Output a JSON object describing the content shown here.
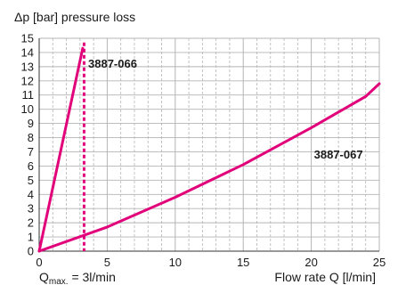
{
  "chart_data": {
    "type": "line",
    "ylabel": "Δp [bar] pressure loss",
    "xlabel": "Flow rate Q [l/min]",
    "xlim": [
      0,
      25
    ],
    "ylim": [
      0,
      15
    ],
    "x_ticks": [
      0,
      5,
      10,
      15,
      20,
      25
    ],
    "y_ticks": [
      0,
      1,
      2,
      3,
      4,
      5,
      6,
      7,
      8,
      9,
      10,
      11,
      12,
      13,
      14,
      15
    ],
    "grid": true,
    "line_color": "#e2007a",
    "series": [
      {
        "name": "3887-066",
        "x": [
          0,
          3.2
        ],
        "y": [
          0,
          14.3
        ]
      },
      {
        "name": "3887-067",
        "x": [
          0,
          5,
          10,
          15,
          20,
          24,
          25
        ],
        "y": [
          0,
          1.7,
          3.8,
          6.1,
          8.7,
          10.9,
          11.8
        ]
      }
    ],
    "annotations": {
      "qmax_line_x": 3.3,
      "qmax_prefix": "Q",
      "qmax_subscript": "max.",
      "qmax_suffix": " = 3l/min"
    }
  }
}
